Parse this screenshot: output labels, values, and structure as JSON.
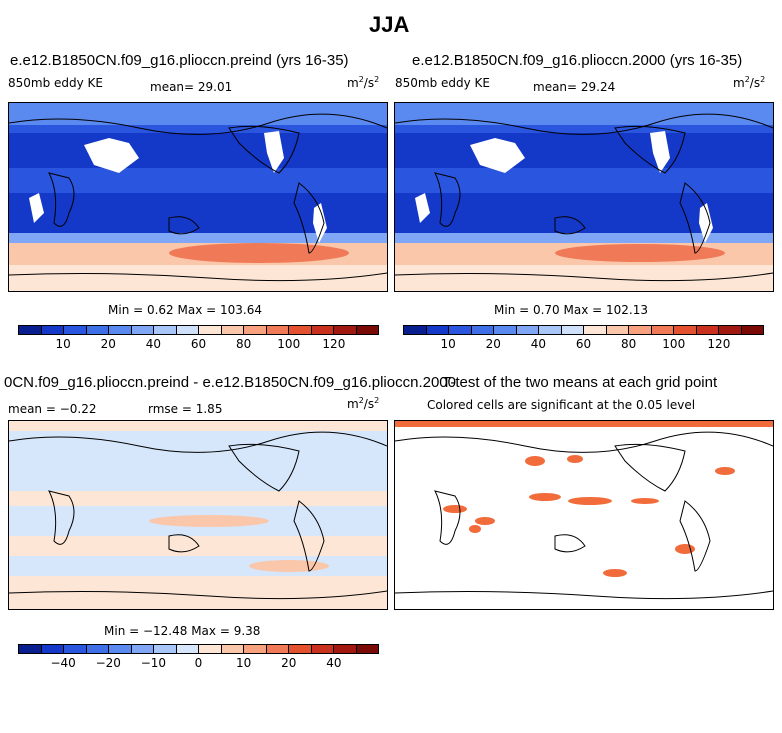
{
  "figure_title": "JJA",
  "panels": {
    "top_left": {
      "title": "e.e12.B1850CN.f09_g16.plioccn.preind (yrs 16-35)",
      "var_label": "850mb eddy KE",
      "mean_text": "mean=  29.01",
      "units": "m",
      "units_sup": "2",
      "units_tail": "/s",
      "units_sup2": "2",
      "minmax": "Min =   0.62 Max = 103.64"
    },
    "top_right": {
      "title": "e.e12.B1850CN.f09_g16.plioccn.2000 (yrs 16-35)",
      "var_label": "850mb eddy KE",
      "mean_text": "mean=  29.24",
      "units": "m",
      "units_sup": "2",
      "units_tail": "/s",
      "units_sup2": "2",
      "minmax": "Min =   0.70 Max = 102.13"
    },
    "bottom_left": {
      "title": "0CN.f09_g16.plioccn.preind - e.e12.B1850CN.f09_g16.plioccn.2000",
      "mean_text": "mean =  −0.22",
      "rmse_text": "rmse =   1.85",
      "units": "m",
      "units_sup": "2",
      "units_tail": "/s",
      "units_sup2": "2",
      "minmax": "Min = −12.48 Max =   9.38"
    },
    "bottom_right": {
      "title": "T-test of the two means at each grid point",
      "subtitle": "Colored cells are significant at the 0.05 level"
    }
  },
  "chart_data": [
    {
      "type": "heatmap",
      "title": "e.e12.B1850CN.f09_g16.plioccn.preind (yrs 16-35)",
      "variable": "850mb eddy KE",
      "units": "m2/s2",
      "mean": 29.01,
      "min": 0.62,
      "max": 103.64,
      "colorbar_ticks": [
        "10",
        "20",
        "40",
        "60",
        "80",
        "100",
        "120"
      ],
      "colorbar_colors": [
        "#0a1f8f",
        "#1438c8",
        "#2a55de",
        "#3f6fe6",
        "#5a8af0",
        "#7fa7f5",
        "#a9c6f8",
        "#cfe0fb",
        "#fde6d6",
        "#fbc7aa",
        "#f7a17e",
        "#f07a58",
        "#e3512f",
        "#c9301d",
        "#a0180f",
        "#7a0a06"
      ]
    },
    {
      "type": "heatmap",
      "title": "e.e12.B1850CN.f09_g16.plioccn.2000 (yrs 16-35)",
      "variable": "850mb eddy KE",
      "units": "m2/s2",
      "mean": 29.24,
      "min": 0.7,
      "max": 102.13,
      "colorbar_ticks": [
        "10",
        "20",
        "40",
        "60",
        "80",
        "100",
        "120"
      ],
      "colorbar_colors": [
        "#0a1f8f",
        "#1438c8",
        "#2a55de",
        "#3f6fe6",
        "#5a8af0",
        "#7fa7f5",
        "#a9c6f8",
        "#cfe0fb",
        "#fde6d6",
        "#fbc7aa",
        "#f7a17e",
        "#f07a58",
        "#e3512f",
        "#c9301d",
        "#a0180f",
        "#7a0a06"
      ]
    },
    {
      "type": "heatmap",
      "title": "0CN.f09_g16.plioccn.preind - e.e12.B1850CN.f09_g16.plioccn.2000",
      "units": "m2/s2",
      "mean": -0.22,
      "rmse": 1.85,
      "min": -12.48,
      "max": 9.38,
      "colorbar_ticks": [
        "−40",
        "−20",
        "−10",
        "0",
        "10",
        "20",
        "40"
      ],
      "colorbar_colors": [
        "#0a1f8f",
        "#1438c8",
        "#2a55de",
        "#3f6fe6",
        "#5a8af0",
        "#7fa7f5",
        "#a9c6f8",
        "#d6e6fb",
        "#fde6d6",
        "#fbc7aa",
        "#f7a17e",
        "#f07a58",
        "#e3512f",
        "#c9301d",
        "#a0180f",
        "#7a0a06"
      ]
    },
    {
      "type": "heatmap",
      "title": "T-test of the two means at each grid point",
      "subtitle": "Colored cells are significant at the 0.05 level",
      "significance_color": "#f26b3a"
    }
  ]
}
